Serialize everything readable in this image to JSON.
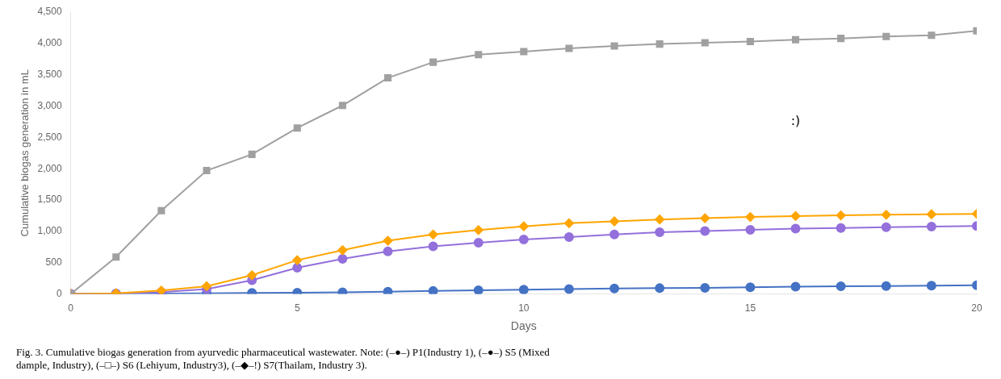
{
  "chart_data": {
    "type": "line",
    "x_label": "Days",
    "y_label": "Cumulative biogas generation in mL",
    "caption": [
      "Fig. 3. Cumulative biogas generation from ayurvedic pharmaceutical wastewater. Note: (–●–) P1(Industry 1), (–●–) S5 (Mixed",
      "dample, Industry), (–□–) S6 (Lehiyum, Industry3), (–◆–!) S7(Thailam, Industry 3)."
    ],
    "annotations": [
      {
        "text": ":)",
        "x": 16,
        "y": 2750
      }
    ],
    "x": [
      0,
      1,
      2,
      3,
      4,
      5,
      6,
      7,
      8,
      9,
      10,
      11,
      12,
      13,
      14,
      15,
      16,
      17,
      18,
      19,
      20
    ],
    "series": [
      {
        "color": "#a0a0a0",
        "marker": "square",
        "values": [
          0,
          590,
          1330,
          1970,
          2230,
          2650,
          3010,
          3450,
          3700,
          3820,
          3870,
          3920,
          3960,
          3990,
          4010,
          4030,
          4060,
          4080,
          4110,
          4130,
          4200
        ]
      },
      {
        "color": "#FFA500",
        "marker": "diamond",
        "values": [
          0,
          12,
          55,
          125,
          300,
          540,
          700,
          850,
          950,
          1020,
          1080,
          1130,
          1160,
          1190,
          1210,
          1230,
          1245,
          1255,
          1265,
          1272,
          1280
        ]
      },
      {
        "color": "#9370DB",
        "marker": "circle",
        "values": [
          0,
          8,
          30,
          80,
          220,
          420,
          560,
          680,
          760,
          820,
          870,
          910,
          950,
          985,
          1005,
          1025,
          1045,
          1055,
          1065,
          1075,
          1085
        ]
      },
      {
        "color": "#4472C4",
        "marker": "circle",
        "values": [
          0,
          4,
          8,
          12,
          18,
          22,
          28,
          38,
          48,
          58,
          68,
          78,
          88,
          93,
          98,
          108,
          118,
          123,
          128,
          133,
          140
        ]
      }
    ],
    "xlim": [
      0,
      20
    ],
    "xticks": [
      0,
      5,
      10,
      15,
      20
    ],
    "ylim": [
      0,
      4500
    ],
    "yticks": [
      0,
      500,
      1000,
      1500,
      2000,
      2500,
      3000,
      3500,
      4000,
      4500
    ],
    "grid": false,
    "legend": false
  }
}
